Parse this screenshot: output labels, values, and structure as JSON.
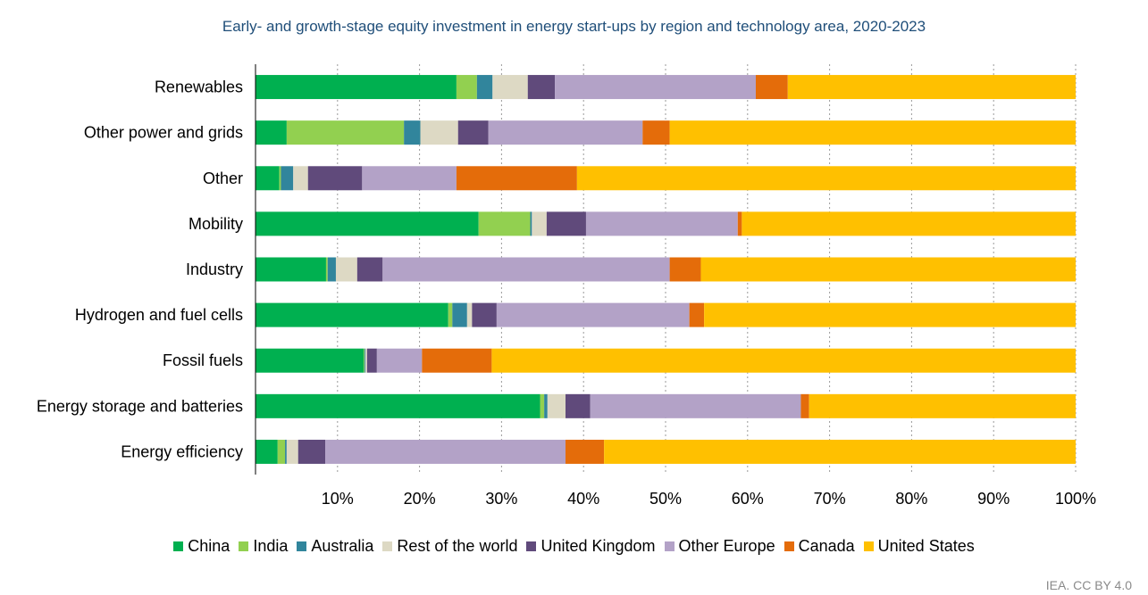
{
  "chart_data": {
    "type": "bar",
    "orientation": "horizontal",
    "stacked": true,
    "title": "Early- and growth-stage equity investment in energy start-ups by region and technology area, 2020-2023",
    "xlabel": "",
    "ylabel": "",
    "xlim": [
      0,
      100
    ],
    "grid": true,
    "legend": "bottom",
    "xticks": [
      "10%",
      "20%",
      "30%",
      "40%",
      "50%",
      "60%",
      "70%",
      "80%",
      "90%",
      "100%"
    ],
    "categories": [
      "Renewables",
      "Other power and grids",
      "Other",
      "Mobility",
      "Industry",
      "Hydrogen and fuel cells",
      "Fossil fuels",
      "Energy storage and batteries",
      "Energy efficiency"
    ],
    "series": [
      {
        "name": "China",
        "color": "#00b050",
        "values": [
          24.5,
          3.8,
          2.9,
          27.2,
          8.6,
          23.5,
          13.2,
          34.7,
          2.7
        ]
      },
      {
        "name": "India",
        "color": "#92d050",
        "values": [
          2.5,
          14.3,
          0.2,
          6.3,
          0.2,
          0.5,
          0.1,
          0.5,
          0.9
        ]
      },
      {
        "name": "Australia",
        "color": "#31859c",
        "values": [
          1.9,
          2.0,
          1.5,
          0.2,
          1.0,
          1.8,
          0.1,
          0.4,
          0.2
        ]
      },
      {
        "name": "Rest of the world",
        "color": "#ddd9c4",
        "values": [
          4.3,
          4.6,
          1.8,
          1.8,
          2.6,
          0.6,
          0.2,
          2.2,
          1.4
        ]
      },
      {
        "name": "United Kingdom",
        "color": "#604a7b",
        "values": [
          3.3,
          3.7,
          6.6,
          4.8,
          3.1,
          3.0,
          1.2,
          3.0,
          3.3
        ]
      },
      {
        "name": "Other Europe",
        "color": "#b3a2c7",
        "values": [
          24.5,
          18.8,
          11.5,
          18.5,
          35.0,
          23.5,
          5.5,
          25.7,
          29.3
        ]
      },
      {
        "name": "Canada",
        "color": "#e46c0a",
        "values": [
          3.9,
          3.3,
          14.7,
          0.5,
          3.8,
          1.8,
          8.5,
          1.0,
          4.7
        ]
      },
      {
        "name": "United States",
        "color": "#ffc000",
        "values": [
          35.1,
          49.5,
          60.8,
          40.7,
          45.7,
          45.3,
          71.2,
          32.5,
          57.5
        ]
      }
    ]
  },
  "source_note": "IEA. CC BY 4.0"
}
